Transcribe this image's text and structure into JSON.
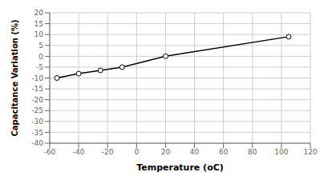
{
  "chart_data": {
    "type": "line",
    "x": [
      -55,
      -40,
      -25,
      -10,
      20,
      105
    ],
    "series": [
      {
        "name": "Capacitance Variation",
        "color": "#000000",
        "marker": "circle",
        "values": [
          -10,
          -8,
          -6.5,
          -5,
          0,
          9
        ]
      }
    ],
    "xlim": [
      -60,
      120
    ],
    "ylim": [
      -40,
      20
    ],
    "xticks": [
      -60,
      -40,
      -20,
      0,
      20,
      40,
      60,
      80,
      100,
      120
    ],
    "yticks": [
      -40,
      -35,
      -30,
      -25,
      -20,
      -15,
      -10,
      -5,
      0,
      5,
      10,
      15,
      20
    ],
    "xlabel": "Temperature (oC)",
    "ylabel": "Capacitance Variation (%)",
    "grid": true
  }
}
